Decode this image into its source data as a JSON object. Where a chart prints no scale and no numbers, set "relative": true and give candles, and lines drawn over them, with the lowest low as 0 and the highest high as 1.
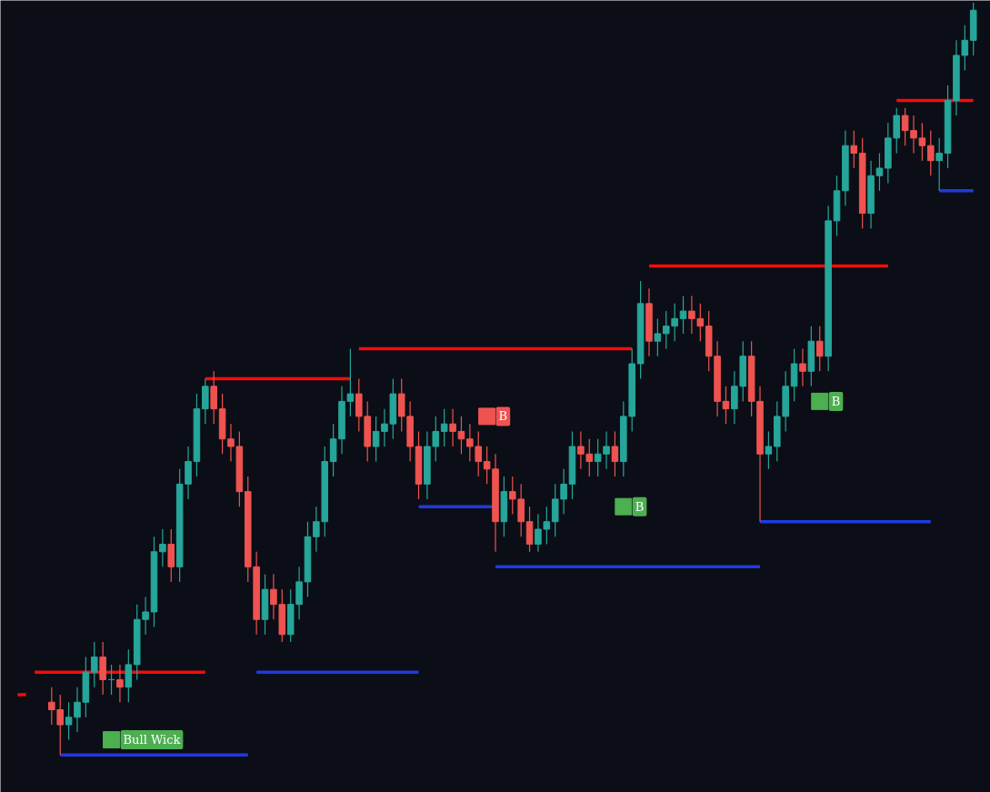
{
  "chart_data": {
    "type": "candlestick",
    "relative": true,
    "grid": false,
    "categories": [
      null,
      null,
      null,
      null,
      null,
      null,
      null,
      null,
      null,
      null,
      null,
      null,
      null,
      null,
      null,
      null,
      null,
      null,
      null,
      null,
      null,
      null,
      null,
      null,
      null,
      null,
      null,
      null,
      null,
      null,
      null,
      null,
      null,
      null,
      null,
      null,
      null,
      null,
      null,
      null,
      null,
      null,
      null,
      null,
      null,
      null,
      null,
      null,
      null,
      null,
      null,
      null,
      null,
      null,
      null,
      null,
      null,
      null,
      null,
      null,
      null,
      null,
      null,
      null,
      null,
      null,
      null,
      null,
      null,
      null,
      null,
      null,
      null,
      null,
      null,
      null,
      null,
      null,
      null,
      null,
      null,
      null,
      null,
      null,
      null,
      null,
      null,
      null,
      null,
      null,
      null,
      null,
      null,
      null,
      null,
      null,
      null,
      null,
      null,
      null,
      null,
      null,
      null,
      null,
      null,
      null,
      null,
      null,
      null,
      null,
      null,
      null,
      null
    ],
    "ohlc": [
      null,
      null,
      null,
      null,
      [
        0.07,
        0.09,
        0.04,
        0.06
      ],
      [
        0.06,
        0.08,
        0,
        0.04
      ],
      [
        0.04,
        0.07,
        0.02,
        0.05
      ],
      [
        0.05,
        0.09,
        0.03,
        0.07
      ],
      [
        0.07,
        0.13,
        0.05,
        0.11
      ],
      [
        0.11,
        0.15,
        0.09,
        0.13
      ],
      [
        0.13,
        0.15,
        0.08,
        0.1
      ],
      [
        0.1,
        0.12,
        0.08,
        0.1
      ],
      [
        0.1,
        0.12,
        0.07,
        0.09
      ],
      [
        0.09,
        0.14,
        0.07,
        0.12
      ],
      [
        0.12,
        0.2,
        0.1,
        0.18
      ],
      [
        0.18,
        0.21,
        0.16,
        0.19
      ],
      [
        0.19,
        0.29,
        0.17,
        0.27
      ],
      [
        0.27,
        0.3,
        0.25,
        0.28
      ],
      [
        0.28,
        0.3,
        0.23,
        0.25
      ],
      [
        0.25,
        0.38,
        0.23,
        0.36
      ],
      [
        0.36,
        0.41,
        0.34,
        0.39
      ],
      [
        0.39,
        0.48,
        0.37,
        0.46
      ],
      [
        0.46,
        0.5,
        0.44,
        0.49
      ],
      [
        0.49,
        0.51,
        0.44,
        0.46
      ],
      [
        0.46,
        0.48,
        0.4,
        0.42
      ],
      [
        0.42,
        0.44,
        0.39,
        0.41
      ],
      [
        0.41,
        0.43,
        0.33,
        0.35
      ],
      [
        0.35,
        0.37,
        0.23,
        0.25
      ],
      [
        0.25,
        0.27,
        0.16,
        0.18
      ],
      [
        0.18,
        0.24,
        0.16,
        0.22
      ],
      [
        0.22,
        0.24,
        0.18,
        0.2
      ],
      [
        0.2,
        0.22,
        0.15,
        0.16
      ],
      [
        0.16,
        0.22,
        0.15,
        0.2
      ],
      [
        0.2,
        0.25,
        0.18,
        0.23
      ],
      [
        0.23,
        0.31,
        0.21,
        0.29
      ],
      [
        0.29,
        0.33,
        0.27,
        0.31
      ],
      [
        0.31,
        0.41,
        0.29,
        0.39
      ],
      [
        0.39,
        0.44,
        0.37,
        0.42
      ],
      [
        0.42,
        0.49,
        0.4,
        0.47
      ],
      [
        0.47,
        0.54,
        0.45,
        0.48
      ],
      [
        0.48,
        0.5,
        0.43,
        0.45
      ],
      [
        0.45,
        0.47,
        0.39,
        0.41
      ],
      [
        0.41,
        0.45,
        0.39,
        0.43
      ],
      [
        0.43,
        0.46,
        0.41,
        0.44
      ],
      [
        0.44,
        0.5,
        0.42,
        0.48
      ],
      [
        0.48,
        0.5,
        0.43,
        0.45
      ],
      [
        0.45,
        0.47,
        0.39,
        0.41
      ],
      [
        0.41,
        0.43,
        0.34,
        0.36
      ],
      [
        0.36,
        0.43,
        0.34,
        0.41
      ],
      [
        0.41,
        0.45,
        0.39,
        0.43
      ],
      [
        0.43,
        0.46,
        0.41,
        0.44
      ],
      [
        0.44,
        0.46,
        0.41,
        0.43
      ],
      [
        0.43,
        0.45,
        0.4,
        0.42
      ],
      [
        0.42,
        0.44,
        0.39,
        0.41
      ],
      [
        0.41,
        0.43,
        0.37,
        0.39
      ],
      [
        0.39,
        0.41,
        0.36,
        0.38
      ],
      [
        0.38,
        0.4,
        0.27,
        0.31
      ],
      [
        0.31,
        0.37,
        0.29,
        0.35
      ],
      [
        0.35,
        0.37,
        0.32,
        0.34
      ],
      [
        0.34,
        0.36,
        0.29,
        0.31
      ],
      [
        0.31,
        0.33,
        0.27,
        0.28
      ],
      [
        0.28,
        0.32,
        0.27,
        0.3
      ],
      [
        0.3,
        0.33,
        0.28,
        0.31
      ],
      [
        0.31,
        0.36,
        0.29,
        0.34
      ],
      [
        0.34,
        0.38,
        0.32,
        0.36
      ],
      [
        0.36,
        0.43,
        0.34,
        0.41
      ],
      [
        0.41,
        0.43,
        0.38,
        0.4
      ],
      [
        0.4,
        0.42,
        0.37,
        0.39
      ],
      [
        0.39,
        0.42,
        0.37,
        0.4
      ],
      [
        0.4,
        0.43,
        0.38,
        0.41
      ],
      [
        0.41,
        0.43,
        0.37,
        0.39
      ],
      [
        0.39,
        0.47,
        0.37,
        0.45
      ],
      [
        0.45,
        0.54,
        0.43,
        0.52
      ],
      [
        0.52,
        0.63,
        0.5,
        0.6
      ],
      [
        0.6,
        0.62,
        0.53,
        0.55
      ],
      [
        0.55,
        0.58,
        0.53,
        0.56
      ],
      [
        0.56,
        0.59,
        0.54,
        0.57
      ],
      [
        0.57,
        0.6,
        0.55,
        0.58
      ],
      [
        0.58,
        0.61,
        0.56,
        0.59
      ],
      [
        0.59,
        0.61,
        0.56,
        0.58
      ],
      [
        0.58,
        0.6,
        0.55,
        0.57
      ],
      [
        0.57,
        0.59,
        0.51,
        0.53
      ],
      [
        0.53,
        0.55,
        0.45,
        0.47
      ],
      [
        0.47,
        0.49,
        0.44,
        0.46
      ],
      [
        0.46,
        0.51,
        0.44,
        0.49
      ],
      [
        0.49,
        0.55,
        0.47,
        0.53
      ],
      [
        0.53,
        0.55,
        0.45,
        0.47
      ],
      [
        0.47,
        0.49,
        0.31,
        0.4
      ],
      [
        0.4,
        0.43,
        0.38,
        0.41
      ],
      [
        0.41,
        0.47,
        0.39,
        0.45
      ],
      [
        0.45,
        0.51,
        0.43,
        0.49
      ],
      [
        0.49,
        0.54,
        0.47,
        0.52
      ],
      [
        0.52,
        0.54,
        0.49,
        0.51
      ],
      [
        0.51,
        0.57,
        0.49,
        0.55
      ],
      [
        0.55,
        0.57,
        0.51,
        0.53
      ],
      [
        0.53,
        0.73,
        0.51,
        0.71
      ],
      [
        0.71,
        0.77,
        0.69,
        0.75
      ],
      [
        0.75,
        0.83,
        0.73,
        0.81
      ],
      [
        0.81,
        0.83,
        0.78,
        0.8
      ],
      [
        0.8,
        0.82,
        0.7,
        0.72
      ],
      [
        0.72,
        0.79,
        0.7,
        0.77
      ],
      [
        0.77,
        0.8,
        0.75,
        0.78
      ],
      [
        0.78,
        0.84,
        0.76,
        0.82
      ],
      [
        0.82,
        0.86,
        0.8,
        0.85
      ],
      [
        0.85,
        0.86,
        0.81,
        0.83
      ],
      [
        0.83,
        0.85,
        0.8,
        0.82
      ],
      [
        0.82,
        0.84,
        0.79,
        0.81
      ],
      [
        0.81,
        0.83,
        0.77,
        0.79
      ],
      [
        0.79,
        0.82,
        0.75,
        0.8
      ],
      [
        0.8,
        0.89,
        0.78,
        0.87
      ],
      [
        0.87,
        0.95,
        0.85,
        0.93
      ],
      [
        0.93,
        0.97,
        0.91,
        0.95
      ],
      [
        0.95,
        1.0,
        0.93,
        0.99
      ]
    ],
    "series": [
      {
        "type": "line",
        "color": "#f20c0c",
        "values": [
          0.08,
          0.08,
          null,
          null,
          null,
          null,
          null,
          null,
          null,
          null,
          null,
          null,
          null,
          null,
          null,
          null,
          null,
          null,
          null,
          null,
          null,
          null,
          null,
          null,
          null,
          null,
          null,
          null,
          null,
          null,
          null,
          null,
          null,
          null,
          null,
          null,
          null,
          null,
          null,
          null,
          null,
          null,
          null,
          null,
          null,
          null,
          null,
          null,
          null,
          null,
          null,
          null,
          null,
          null,
          null,
          null,
          null,
          null,
          null,
          null,
          null,
          null,
          null,
          null,
          null,
          null,
          null,
          null,
          null,
          null,
          null,
          null,
          null,
          null,
          null,
          null,
          null,
          null,
          null,
          null,
          null,
          null,
          null,
          null,
          null,
          null,
          null,
          null,
          null,
          null,
          null,
          null,
          null,
          null,
          null,
          null,
          null,
          null,
          null,
          null,
          null,
          null,
          null,
          null,
          null,
          null,
          null,
          null,
          null,
          null,
          null,
          null,
          null
        ]
      },
      {
        "type": "line",
        "color": "#f20c0c",
        "values": [
          null,
          null,
          0.11,
          0.11,
          0.11,
          0.11,
          0.11,
          0.11,
          0.11,
          0.11,
          0.11,
          0.11,
          0.11,
          0.11,
          0.11,
          0.11,
          0.11,
          0.11,
          0.11,
          0.11,
          0.11,
          0.11,
          0.11,
          null,
          null,
          null,
          null,
          null,
          null,
          null,
          null,
          null,
          null,
          null,
          null,
          null,
          null,
          null,
          null,
          null,
          null,
          null,
          null,
          null,
          null,
          null,
          null,
          null,
          null,
          null,
          null,
          null,
          null,
          null,
          null,
          null,
          null,
          null,
          null,
          null,
          null,
          null,
          null,
          null,
          null,
          null,
          null,
          null,
          null,
          null,
          null,
          null,
          null,
          null,
          null,
          null,
          null,
          null,
          null,
          null,
          null,
          null,
          null,
          null,
          null,
          null,
          null,
          null,
          null,
          null,
          null,
          null,
          null,
          null,
          null,
          null,
          null,
          null,
          null,
          null,
          null,
          null,
          null,
          null,
          null,
          null,
          null,
          null,
          null,
          null,
          null,
          null,
          null
        ]
      },
      {
        "type": "line",
        "color": "#f20c0c",
        "values": [
          null,
          null,
          null,
          null,
          null,
          null,
          null,
          null,
          null,
          null,
          null,
          null,
          null,
          null,
          null,
          null,
          null,
          null,
          null,
          null,
          null,
          null,
          0.5,
          0.5,
          0.5,
          0.5,
          0.5,
          0.5,
          0.5,
          0.5,
          0.5,
          0.5,
          0.5,
          0.5,
          0.5,
          0.5,
          0.5,
          0.5,
          0.5,
          0.5,
          null,
          null,
          null,
          null,
          null,
          null,
          null,
          null,
          null,
          null,
          null,
          null,
          null,
          null,
          null,
          null,
          null,
          null,
          null,
          null,
          null,
          null,
          null,
          null,
          null,
          null,
          null,
          null,
          null,
          null,
          null,
          null,
          null,
          null,
          null,
          null,
          null,
          null,
          null,
          null,
          null,
          null,
          null,
          null,
          null,
          null,
          null,
          null,
          null,
          null,
          null,
          null,
          null,
          null,
          null,
          null,
          null,
          null,
          null,
          null,
          null,
          null,
          null,
          null,
          null,
          null,
          null,
          null,
          null,
          null,
          null,
          null,
          null
        ]
      },
      {
        "type": "line",
        "color": "#f20c0c",
        "values": [
          null,
          null,
          null,
          null,
          null,
          null,
          null,
          null,
          null,
          null,
          null,
          null,
          null,
          null,
          null,
          null,
          null,
          null,
          null,
          null,
          null,
          null,
          null,
          null,
          null,
          null,
          null,
          null,
          null,
          null,
          null,
          null,
          null,
          null,
          null,
          null,
          null,
          null,
          null,
          null,
          0.54,
          0.54,
          0.54,
          0.54,
          0.54,
          0.54,
          0.54,
          0.54,
          0.54,
          0.54,
          0.54,
          0.54,
          0.54,
          0.54,
          0.54,
          0.54,
          0.54,
          0.54,
          0.54,
          0.54,
          0.54,
          0.54,
          0.54,
          0.54,
          0.54,
          0.54,
          0.54,
          0.54,
          0.54,
          0.54,
          0.54,
          0.54,
          0.54,
          null,
          null,
          null,
          null,
          null,
          null,
          null,
          null,
          null,
          null,
          null,
          null,
          null,
          null,
          null,
          null,
          null,
          null,
          null,
          null,
          null,
          null,
          null,
          null,
          null,
          null,
          null,
          null,
          null,
          null,
          null,
          null,
          null,
          null,
          null,
          null,
          null,
          null,
          null,
          null
        ]
      },
      {
        "type": "line",
        "color": "#f20c0c",
        "values": [
          null,
          null,
          null,
          null,
          null,
          null,
          null,
          null,
          null,
          null,
          null,
          null,
          null,
          null,
          null,
          null,
          null,
          null,
          null,
          null,
          null,
          null,
          null,
          null,
          null,
          null,
          null,
          null,
          null,
          null,
          null,
          null,
          null,
          null,
          null,
          null,
          null,
          null,
          null,
          null,
          null,
          null,
          null,
          null,
          null,
          null,
          null,
          null,
          null,
          null,
          null,
          null,
          null,
          null,
          null,
          null,
          null,
          null,
          null,
          null,
          null,
          null,
          null,
          null,
          null,
          null,
          null,
          null,
          null,
          null,
          null,
          null,
          null,
          null,
          0.65,
          0.65,
          0.65,
          0.65,
          0.65,
          0.65,
          0.65,
          0.65,
          0.65,
          0.65,
          0.65,
          0.65,
          0.65,
          0.65,
          0.65,
          0.65,
          0.65,
          0.65,
          0.65,
          0.65,
          0.65,
          0.65,
          0.65,
          0.65,
          0.65,
          0.65,
          0.65,
          0.65,
          0.65,
          null,
          null,
          null,
          null,
          null,
          null,
          null,
          null,
          null,
          null
        ]
      },
      {
        "type": "line",
        "color": "#f20c0c",
        "values": [
          null,
          null,
          null,
          null,
          null,
          null,
          null,
          null,
          null,
          null,
          null,
          null,
          null,
          null,
          null,
          null,
          null,
          null,
          null,
          null,
          null,
          null,
          null,
          null,
          null,
          null,
          null,
          null,
          null,
          null,
          null,
          null,
          null,
          null,
          null,
          null,
          null,
          null,
          null,
          null,
          null,
          null,
          null,
          null,
          null,
          null,
          null,
          null,
          null,
          null,
          null,
          null,
          null,
          null,
          null,
          null,
          null,
          null,
          null,
          null,
          null,
          null,
          null,
          null,
          null,
          null,
          null,
          null,
          null,
          null,
          null,
          null,
          null,
          null,
          null,
          null,
          null,
          null,
          null,
          null,
          null,
          null,
          null,
          null,
          null,
          null,
          null,
          null,
          null,
          null,
          null,
          null,
          null,
          null,
          null,
          null,
          null,
          null,
          null,
          null,
          null,
          null,
          null,
          0.87,
          0.87,
          0.87,
          0.87,
          0.87,
          0.87,
          0.87,
          0.87,
          0.87,
          0.87
        ]
      },
      {
        "type": "line",
        "color": "#1f3ae0",
        "values": [
          null,
          null,
          null,
          null,
          null,
          0,
          0,
          0,
          0,
          0,
          0,
          0,
          0,
          0,
          0,
          0,
          0,
          0,
          0,
          0,
          0,
          0,
          0,
          0,
          0,
          0,
          0,
          0,
          null,
          null,
          null,
          null,
          null,
          null,
          null,
          null,
          null,
          null,
          null,
          null,
          null,
          null,
          null,
          null,
          null,
          null,
          null,
          null,
          null,
          null,
          null,
          null,
          null,
          null,
          null,
          null,
          null,
          null,
          null,
          null,
          null,
          null,
          null,
          null,
          null,
          null,
          null,
          null,
          null,
          null,
          null,
          null,
          null,
          null,
          null,
          null,
          null,
          null,
          null,
          null,
          null,
          null,
          null,
          null,
          null,
          null,
          null,
          null,
          null,
          null,
          null,
          null,
          null,
          null,
          null,
          null,
          null,
          null,
          null,
          null,
          null,
          null,
          null,
          null,
          null,
          null,
          null,
          null,
          null,
          null,
          null,
          null,
          null
        ]
      },
      {
        "type": "line",
        "color": "#1f3ae0",
        "values": [
          null,
          null,
          null,
          null,
          null,
          null,
          null,
          null,
          null,
          null,
          null,
          null,
          null,
          null,
          null,
          null,
          null,
          null,
          null,
          null,
          null,
          null,
          null,
          null,
          null,
          null,
          null,
          null,
          0.11,
          0.11,
          0.11,
          0.11,
          0.11,
          0.11,
          0.11,
          0.11,
          0.11,
          0.11,
          0.11,
          0.11,
          0.11,
          0.11,
          0.11,
          0.11,
          0.11,
          0.11,
          0.11,
          0.11,
          null,
          null,
          null,
          null,
          null,
          null,
          null,
          null,
          null,
          null,
          null,
          null,
          null,
          null,
          null,
          null,
          null,
          null,
          null,
          null,
          null,
          null,
          null,
          null,
          null,
          null,
          null,
          null,
          null,
          null,
          null,
          null,
          null,
          null,
          null,
          null,
          null,
          null,
          null,
          null,
          null,
          null,
          null,
          null,
          null,
          null,
          null,
          null,
          null,
          null,
          null,
          null,
          null,
          null,
          null,
          null,
          null,
          null,
          null,
          null,
          null,
          null,
          null,
          null,
          null
        ]
      },
      {
        "type": "line",
        "color": "#1f3ae0",
        "values": [
          null,
          null,
          null,
          null,
          null,
          null,
          null,
          null,
          null,
          null,
          null,
          null,
          null,
          null,
          null,
          null,
          null,
          null,
          null,
          null,
          null,
          null,
          null,
          null,
          null,
          null,
          null,
          null,
          null,
          null,
          null,
          null,
          null,
          null,
          null,
          null,
          null,
          null,
          null,
          null,
          null,
          null,
          null,
          null,
          null,
          null,
          null,
          0.33,
          0.33,
          0.33,
          0.33,
          0.33,
          0.33,
          0.33,
          0.33,
          0.33,
          0.33,
          null,
          null,
          null,
          null,
          null,
          null,
          null,
          null,
          null,
          null,
          null,
          null,
          null,
          null,
          null,
          null,
          null,
          null,
          null,
          null,
          null,
          null,
          null,
          null,
          null,
          null,
          null,
          null,
          null,
          null,
          null,
          null,
          null,
          null,
          null,
          null,
          null,
          null,
          null,
          null,
          null,
          null,
          null,
          null,
          null,
          null,
          null,
          null,
          null,
          null,
          null,
          null,
          null,
          null,
          null,
          null
        ]
      },
      {
        "type": "line",
        "color": "#1f3ae0",
        "values": [
          null,
          null,
          null,
          null,
          null,
          null,
          null,
          null,
          null,
          null,
          null,
          null,
          null,
          null,
          null,
          null,
          null,
          null,
          null,
          null,
          null,
          null,
          null,
          null,
          null,
          null,
          null,
          null,
          null,
          null,
          null,
          null,
          null,
          null,
          null,
          null,
          null,
          null,
          null,
          null,
          null,
          null,
          null,
          null,
          null,
          null,
          null,
          null,
          null,
          null,
          null,
          null,
          null,
          null,
          null,
          null,
          0.25,
          0.25,
          0.25,
          0.25,
          0.25,
          0.25,
          0.25,
          0.25,
          0.25,
          0.25,
          0.25,
          0.25,
          0.25,
          0.25,
          0.25,
          0.25,
          0.25,
          0.25,
          0.25,
          0.25,
          0.25,
          0.25,
          0.25,
          0.25,
          0.25,
          0.25,
          0.25,
          0.25,
          0.25,
          0.25,
          0.25,
          0.25,
          null,
          null,
          null,
          null,
          null,
          null,
          null,
          null,
          null,
          null,
          null,
          null,
          null,
          null,
          null,
          null,
          null,
          null,
          null,
          null,
          null,
          null,
          null,
          null,
          null
        ]
      },
      {
        "type": "line",
        "color": "#1f3ae0",
        "values": [
          null,
          null,
          null,
          null,
          null,
          null,
          null,
          null,
          null,
          null,
          null,
          null,
          null,
          null,
          null,
          null,
          null,
          null,
          null,
          null,
          null,
          null,
          null,
          null,
          null,
          null,
          null,
          null,
          null,
          null,
          null,
          null,
          null,
          null,
          null,
          null,
          null,
          null,
          null,
          null,
          null,
          null,
          null,
          null,
          null,
          null,
          null,
          null,
          null,
          null,
          null,
          null,
          null,
          null,
          null,
          null,
          null,
          null,
          null,
          null,
          null,
          null,
          null,
          null,
          null,
          null,
          null,
          null,
          null,
          null,
          null,
          null,
          null,
          null,
          null,
          null,
          null,
          null,
          null,
          null,
          null,
          null,
          null,
          null,
          null,
          null,
          null,
          0.31,
          0.31,
          0.31,
          0.31,
          0.31,
          0.31,
          0.31,
          0.31,
          0.31,
          0.31,
          0.31,
          0.31,
          0.31,
          0.31,
          0.31,
          0.31,
          0.31,
          0.31,
          0.31,
          0.31,
          0.31,
          null,
          null,
          null,
          null,
          null
        ]
      },
      {
        "type": "line",
        "color": "#1f3ae0",
        "values": [
          null,
          null,
          null,
          null,
          null,
          null,
          null,
          null,
          null,
          null,
          null,
          null,
          null,
          null,
          null,
          null,
          null,
          null,
          null,
          null,
          null,
          null,
          null,
          null,
          null,
          null,
          null,
          null,
          null,
          null,
          null,
          null,
          null,
          null,
          null,
          null,
          null,
          null,
          null,
          null,
          null,
          null,
          null,
          null,
          null,
          null,
          null,
          null,
          null,
          null,
          null,
          null,
          null,
          null,
          null,
          null,
          null,
          null,
          null,
          null,
          null,
          null,
          null,
          null,
          null,
          null,
          null,
          null,
          null,
          null,
          null,
          null,
          null,
          null,
          null,
          null,
          null,
          null,
          null,
          null,
          null,
          null,
          null,
          null,
          null,
          null,
          null,
          null,
          null,
          null,
          null,
          null,
          null,
          null,
          null,
          null,
          null,
          null,
          null,
          null,
          null,
          null,
          null,
          null,
          null,
          null,
          null,
          null,
          0.75,
          0.75,
          0.75,
          0.75,
          0.75
        ]
      },
      {
        "type": "scatter",
        "name": "Bull Wick",
        "color": "#4caf50",
        "values": [
          null,
          null,
          null,
          null,
          null,
          null,
          null,
          null,
          null,
          null,
          null,
          0.02,
          null,
          null,
          null,
          null,
          null,
          null,
          null,
          null,
          null,
          null,
          null,
          null,
          null,
          null,
          null,
          null,
          null,
          null,
          null,
          null,
          null,
          null,
          null,
          null,
          null,
          null,
          null,
          null,
          null,
          null,
          null,
          null,
          null,
          null,
          null,
          null,
          null,
          null,
          null,
          null,
          null,
          null,
          null,
          null,
          null,
          null,
          null,
          null,
          null,
          null,
          null,
          null,
          null,
          null,
          null,
          null,
          null,
          null,
          null,
          null,
          null,
          null,
          null,
          null,
          null,
          null,
          null,
          null,
          null,
          null,
          null,
          null,
          null,
          null,
          null,
          null,
          null,
          null,
          null,
          null,
          null,
          null,
          null,
          null,
          null,
          null,
          null,
          null,
          null,
          null,
          null,
          null,
          null,
          null,
          null,
          null,
          null,
          null,
          null,
          null,
          null
        ]
      },
      {
        "type": "scatter",
        "name": "B",
        "color": "#ef5350",
        "values": [
          null,
          null,
          null,
          null,
          null,
          null,
          null,
          null,
          null,
          null,
          null,
          null,
          null,
          null,
          null,
          null,
          null,
          null,
          null,
          null,
          null,
          null,
          null,
          null,
          null,
          null,
          null,
          null,
          null,
          null,
          null,
          null,
          null,
          null,
          null,
          null,
          null,
          null,
          null,
          null,
          null,
          null,
          null,
          null,
          null,
          null,
          null,
          null,
          null,
          null,
          null,
          null,
          null,
          null,
          null,
          0.45,
          null,
          null,
          null,
          null,
          null,
          null,
          null,
          null,
          null,
          null,
          null,
          null,
          null,
          null,
          null,
          null,
          null,
          null,
          null,
          null,
          null,
          null,
          null,
          null,
          null,
          null,
          null,
          null,
          null,
          null,
          null,
          null,
          null,
          null,
          null,
          null,
          null,
          null,
          null,
          null,
          null,
          null,
          null,
          null,
          null,
          null,
          null,
          null,
          null,
          null,
          null,
          null,
          null,
          null,
          null,
          null,
          null
        ]
      },
      {
        "type": "scatter",
        "name": "B",
        "color": "#4caf50",
        "values": [
          null,
          null,
          null,
          null,
          null,
          null,
          null,
          null,
          null,
          null,
          null,
          null,
          null,
          null,
          null,
          null,
          null,
          null,
          null,
          null,
          null,
          null,
          null,
          null,
          null,
          null,
          null,
          null,
          null,
          null,
          null,
          null,
          null,
          null,
          null,
          null,
          null,
          null,
          null,
          null,
          null,
          null,
          null,
          null,
          null,
          null,
          null,
          null,
          null,
          null,
          null,
          null,
          null,
          null,
          null,
          null,
          null,
          null,
          null,
          null,
          null,
          null,
          null,
          null,
          null,
          null,
          null,
          null,
          null,
          null,
          null,
          0.33,
          null,
          null,
          null,
          null,
          null,
          null,
          null,
          null,
          null,
          null,
          null,
          null,
          null,
          null,
          null,
          null,
          null,
          null,
          null,
          null,
          null,
          null,
          null,
          null,
          null,
          null,
          null,
          null,
          null,
          null,
          null,
          null,
          null,
          null,
          null,
          null,
          null,
          null,
          null,
          null,
          null
        ]
      },
      {
        "type": "scatter",
        "name": "B",
        "color": "#4caf50",
        "values": [
          null,
          null,
          null,
          null,
          null,
          null,
          null,
          null,
          null,
          null,
          null,
          null,
          null,
          null,
          null,
          null,
          null,
          null,
          null,
          null,
          null,
          null,
          null,
          null,
          null,
          null,
          null,
          null,
          null,
          null,
          null,
          null,
          null,
          null,
          null,
          null,
          null,
          null,
          null,
          null,
          null,
          null,
          null,
          null,
          null,
          null,
          null,
          null,
          null,
          null,
          null,
          null,
          null,
          null,
          null,
          null,
          null,
          null,
          null,
          null,
          null,
          null,
          null,
          null,
          null,
          null,
          null,
          null,
          null,
          null,
          null,
          null,
          null,
          null,
          null,
          null,
          null,
          null,
          null,
          null,
          null,
          null,
          null,
          null,
          null,
          null,
          null,
          null,
          null,
          null,
          null,
          null,
          null,
          null,
          0.47,
          null,
          null,
          null,
          null,
          null,
          null,
          null,
          null,
          null,
          null,
          null,
          null,
          null,
          null,
          null,
          null,
          null,
          null
        ]
      }
    ]
  }
}
